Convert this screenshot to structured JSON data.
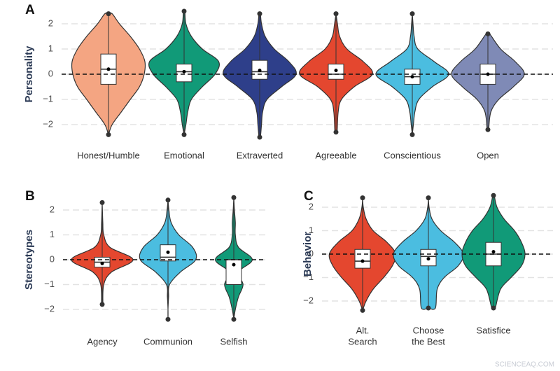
{
  "chart_data": [
    {
      "type": "violin",
      "panel_label": "A",
      "ylabel": "Personality",
      "ylim": [
        -2.5,
        2.5
      ],
      "yticks": [
        {
          "value": -2,
          "label": "−2"
        },
        {
          "value": -1,
          "label": "−1"
        },
        0,
        1,
        2
      ],
      "grid": true,
      "refline": 0,
      "density_y": [
        -2.5,
        -2,
        -1.5,
        -1,
        -0.5,
        0,
        0.5,
        1,
        1.5,
        2,
        2.5
      ],
      "categories": [
        "Honest/Humble",
        "Emotional",
        "Extraverted",
        "Agreeable",
        "Conscientious",
        "Open"
      ],
      "violins": [
        {
          "color": "#f4a582",
          "min": -2.4,
          "q1": -0.4,
          "median": 0.2,
          "q3": 0.8,
          "max": 2.4,
          "mean": 0.2,
          "density": [
            0,
            0.1,
            0.35,
            0.6,
            0.85,
            0.98,
            1,
            0.85,
            0.6,
            0.3,
            0.1
          ]
        },
        {
          "color": "#119a78",
          "min": -2.4,
          "q1": -0.3,
          "median": 0.1,
          "q3": 0.4,
          "max": 2.5,
          "mean": 0.1,
          "density": [
            0,
            0.05,
            0.1,
            0.2,
            0.5,
            0.85,
            0.95,
            0.5,
            0.2,
            0.05,
            0.02
          ]
        },
        {
          "color": "#2e3f8a",
          "min": -2.5,
          "q1": -0.2,
          "median": 0.1,
          "q3": 0.55,
          "max": 2.4,
          "mean": 0.15,
          "density": [
            0.02,
            0.05,
            0.08,
            0.2,
            0.6,
            1,
            0.8,
            0.4,
            0.15,
            0.05,
            0.02
          ]
        },
        {
          "color": "#e4472f",
          "min": -2.3,
          "q1": -0.2,
          "median": 0,
          "q3": 0.4,
          "max": 2.4,
          "mean": 0.15,
          "density": [
            0,
            0.03,
            0.06,
            0.15,
            0.5,
            1,
            0.75,
            0.3,
            0.1,
            0.04,
            0
          ]
        },
        {
          "color": "#4bbde0",
          "min": -2.4,
          "q1": -0.4,
          "median": -0.1,
          "q3": 0.2,
          "max": 2.4,
          "mean": -0.1,
          "density": [
            0,
            0.03,
            0.07,
            0.18,
            0.55,
            1,
            0.6,
            0.15,
            0.05,
            0.02,
            0
          ]
        },
        {
          "color": "#7f8ab6",
          "min": -2.2,
          "q1": -0.4,
          "median": 0,
          "q3": 0.4,
          "max": 1.6,
          "mean": 0,
          "density": [
            0,
            0.02,
            0.08,
            0.3,
            0.7,
            1,
            0.75,
            0.35,
            0.05,
            0,
            0
          ]
        }
      ]
    },
    {
      "type": "violin",
      "panel_label": "B",
      "ylabel": "Stereotypes",
      "ylim": [
        -2.5,
        2.5
      ],
      "yticks": [
        {
          "value": -2,
          "label": "−2"
        },
        {
          "value": -1,
          "label": "−1"
        },
        0,
        1,
        2
      ],
      "grid": true,
      "refline": 0,
      "density_y": [
        -2.5,
        -2,
        -1.5,
        -1,
        -0.5,
        0,
        0.5,
        1,
        1.5,
        2,
        2.5
      ],
      "categories": [
        "Agency",
        "Communion",
        "Selfish"
      ],
      "violins": [
        {
          "color": "#e4472f",
          "min": -1.8,
          "q1": -0.3,
          "median": -0.1,
          "q3": 0.1,
          "max": 2.3,
          "mean": -0.15,
          "density": [
            0,
            0,
            0.02,
            0.05,
            0.3,
            1,
            0.25,
            0.05,
            0.02,
            0,
            0
          ]
        },
        {
          "color": "#4bbde0",
          "min": -2.4,
          "q1": -0.05,
          "median": 0.1,
          "q3": 0.6,
          "max": 2.4,
          "mean": 0.3,
          "density": [
            0,
            0,
            0.02,
            0.05,
            0.4,
            0.9,
            0.8,
            0.35,
            0.1,
            0.03,
            0
          ]
        },
        {
          "color": "#119a78",
          "min": -2.4,
          "q1": -1,
          "median": 0,
          "q3": 0,
          "max": 2.5,
          "mean": -0.2,
          "density": [
            0,
            0.05,
            0.15,
            0.3,
            0.15,
            0.6,
            0.15,
            0.05,
            0.05,
            0.02,
            0
          ]
        }
      ]
    },
    {
      "type": "violin",
      "panel_label": "C",
      "ylabel": "Behavior",
      "ylim": [
        -2.5,
        2.5
      ],
      "yticks": [
        {
          "value": -2,
          "label": "−2"
        },
        {
          "value": -1,
          "label": "−1"
        },
        0,
        1,
        2
      ],
      "grid": true,
      "refline": 0,
      "density_y": [
        -2.5,
        -2,
        -1.5,
        -1,
        -0.5,
        0,
        0.5,
        1,
        1.5,
        2,
        2.5
      ],
      "categories": [
        [
          "Alt.",
          "Search"
        ],
        [
          "Choose",
          "the Best"
        ],
        [
          "Satisfice"
        ]
      ],
      "violins": [
        {
          "color": "#e4472f",
          "min": -2.4,
          "q1": -0.6,
          "median": -0.3,
          "q3": 0.2,
          "max": 2.4,
          "mean": -0.3,
          "density": [
            0,
            0.1,
            0.3,
            0.6,
            0.85,
            0.95,
            0.7,
            0.3,
            0.1,
            0.02,
            0
          ]
        },
        {
          "color": "#4bbde0",
          "min": -2.3,
          "q1": -0.5,
          "median": -0.1,
          "q3": 0.2,
          "max": 2.4,
          "mean": -0.2,
          "density": [
            0,
            0.2,
            0.25,
            0.45,
            0.85,
            1,
            0.75,
            0.35,
            0.1,
            0.02,
            0
          ]
        },
        {
          "color": "#119a78",
          "min": -2.3,
          "q1": -0.5,
          "median": 0,
          "q3": 0.5,
          "max": 2.5,
          "mean": 0.1,
          "density": [
            0,
            0.05,
            0.2,
            0.5,
            0.8,
            0.9,
            0.8,
            0.6,
            0.3,
            0.1,
            0.02
          ]
        }
      ]
    }
  ],
  "watermark": "SCIENCEAQ.COM"
}
